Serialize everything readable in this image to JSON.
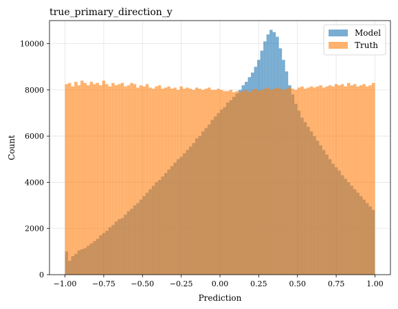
{
  "chart_data": {
    "type": "bar",
    "title": "true_primary_direction_y",
    "xlabel": "Prediction",
    "ylabel": "Count",
    "xlim": [
      -1.1,
      1.1
    ],
    "ylim": [
      0,
      11000
    ],
    "grid": true,
    "legend_placement": "top-right",
    "xticks": [
      -1.0,
      -0.75,
      -0.5,
      -0.25,
      0.0,
      0.25,
      0.5,
      0.75,
      1.0
    ],
    "xtick_labels": [
      "−1.00",
      "−0.75",
      "−0.50",
      "−0.25",
      "0.00",
      "0.25",
      "0.50",
      "0.75",
      "1.00"
    ],
    "yticks": [
      0,
      2000,
      4000,
      6000,
      8000,
      10000
    ],
    "ytick_labels": [
      "0",
      "2000",
      "4000",
      "6000",
      "8000",
      "10000"
    ],
    "bins": {
      "start": -1.0,
      "end": 1.0,
      "count": 100
    },
    "series": [
      {
        "name": "Model",
        "color": "#1f77b4",
        "alpha": 0.6,
        "values": [
          1000,
          600,
          800,
          900,
          1050,
          1100,
          1150,
          1250,
          1350,
          1450,
          1550,
          1700,
          1800,
          1900,
          2050,
          2150,
          2300,
          2400,
          2450,
          2600,
          2750,
          2850,
          3000,
          3100,
          3250,
          3400,
          3550,
          3700,
          3850,
          4000,
          4100,
          4250,
          4400,
          4550,
          4700,
          4850,
          5000,
          5100,
          5250,
          5400,
          5550,
          5700,
          5900,
          6000,
          6200,
          6350,
          6500,
          6700,
          6850,
          7000,
          7150,
          7250,
          7450,
          7550,
          7700,
          7850,
          8000,
          8200,
          8350,
          8550,
          8750,
          9000,
          9300,
          9700,
          10100,
          10400,
          10600,
          10500,
          10300,
          9800,
          9300,
          8800,
          8200,
          7800,
          7400,
          7100,
          6800,
          6600,
          6400,
          6200,
          6000,
          5800,
          5600,
          5400,
          5200,
          5000,
          4800,
          4650,
          4500,
          4300,
          4150,
          4000,
          3850,
          3700,
          3550,
          3400,
          3250,
          3100,
          2950,
          2800
        ]
      },
      {
        "name": "Truth",
        "color": "#ff7f0e",
        "alpha": 0.6,
        "values": [
          8250,
          8300,
          8150,
          8350,
          8200,
          8400,
          8300,
          8200,
          8350,
          8250,
          8300,
          8200,
          8400,
          8250,
          8150,
          8300,
          8200,
          8250,
          8300,
          8150,
          8200,
          8300,
          8250,
          8100,
          8200,
          8150,
          8250,
          8100,
          8050,
          8150,
          8200,
          8050,
          8100,
          8150,
          8050,
          8100,
          8000,
          8150,
          8050,
          8100,
          8050,
          8000,
          8100,
          8050,
          8000,
          8050,
          8100,
          8000,
          8000,
          8050,
          8000,
          7950,
          7950,
          8000,
          7900,
          7950,
          7900,
          7950,
          8000,
          7900,
          8000,
          8050,
          7950,
          8000,
          8050,
          8100,
          8000,
          8050,
          8100,
          8050,
          8000,
          8050,
          8100,
          8050,
          8000,
          8100,
          8150,
          8050,
          8100,
          8150,
          8100,
          8150,
          8200,
          8100,
          8150,
          8200,
          8150,
          8250,
          8200,
          8250,
          8150,
          8300,
          8200,
          8250,
          8150,
          8200,
          8250,
          8150,
          8200,
          8300
        ]
      }
    ]
  }
}
